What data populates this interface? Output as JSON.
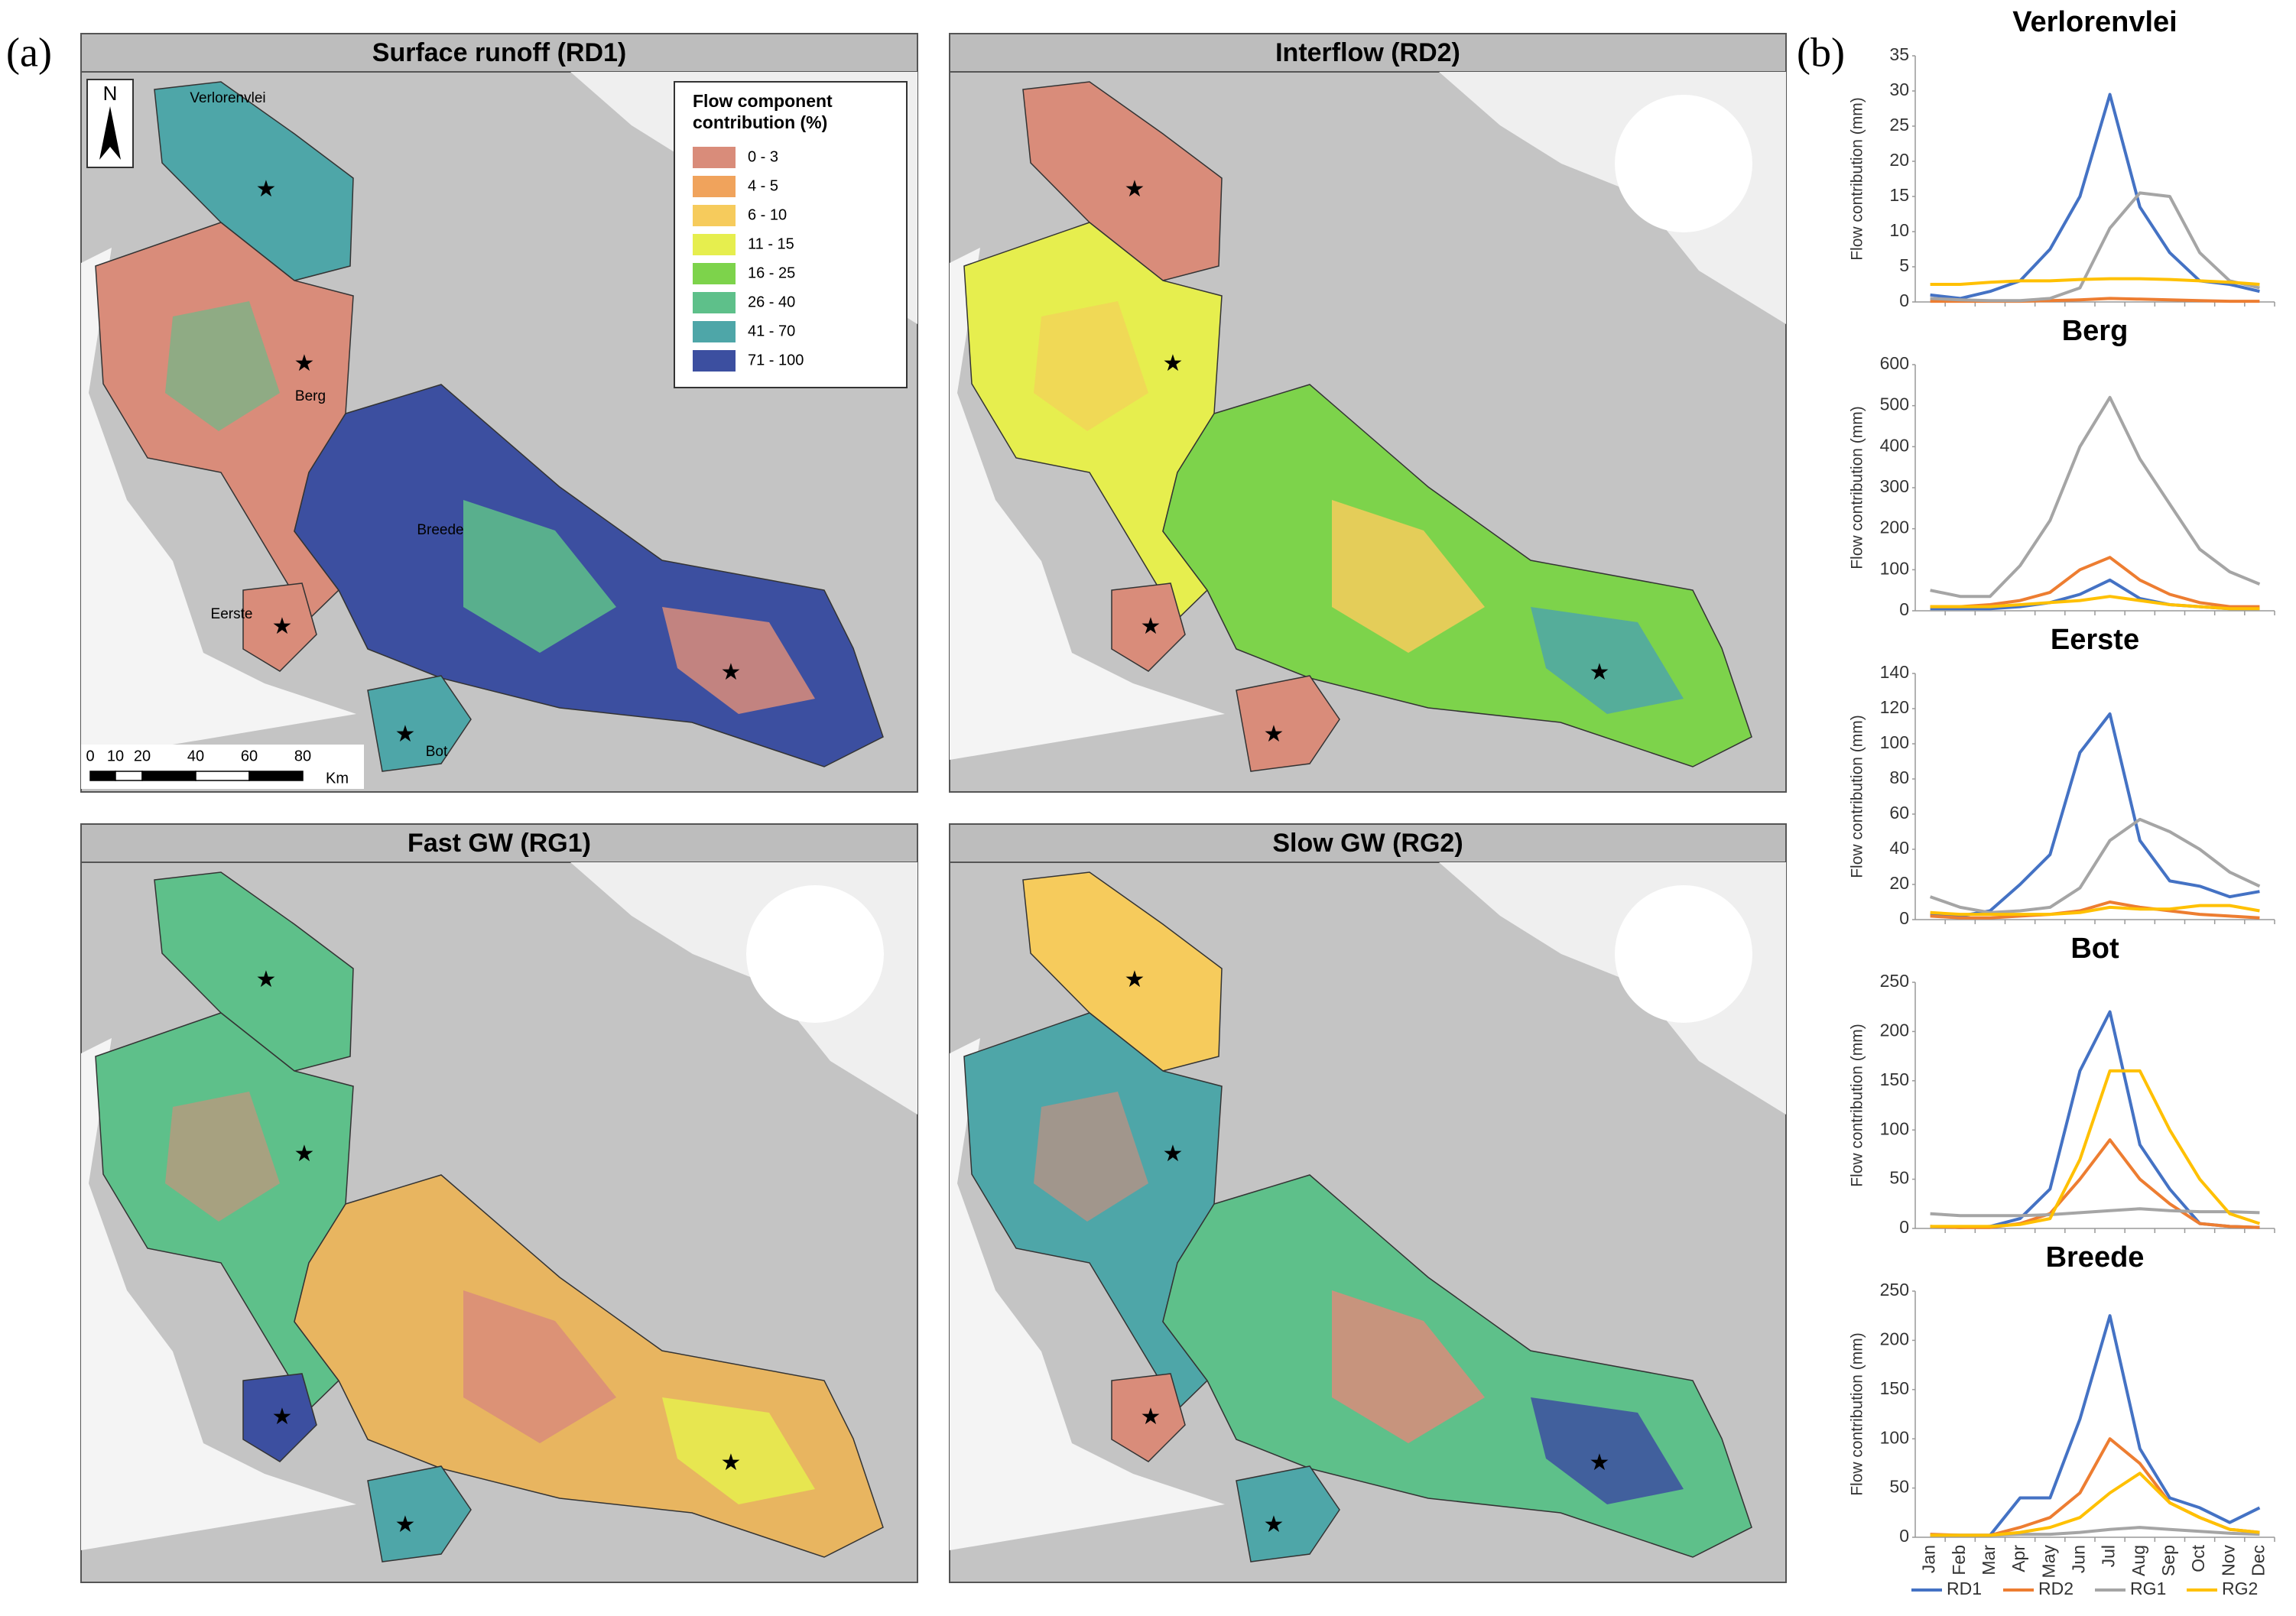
{
  "panel_labels": [
    "(a)",
    "(b)"
  ],
  "maps": [
    {
      "title": "Surface runoff (RD1)"
    },
    {
      "title": "Interflow (RD2)"
    },
    {
      "title": "Fast GW (RG1)"
    },
    {
      "title": "Slow GW (RG2)"
    }
  ],
  "north": "N",
  "places": [
    "Verlorenvlei",
    "Berg",
    "Breede",
    "Eerste",
    "Bot"
  ],
  "scale_bar": [
    "0",
    "10",
    "20",
    "40",
    "60",
    "80",
    "Km"
  ],
  "map_legend": {
    "title": [
      "Flow component",
      "contribution (%)"
    ],
    "items": [
      {
        "label": "0 - 3",
        "color": "#d98c7a"
      },
      {
        "label": "4 - 5",
        "color": "#f0a35c"
      },
      {
        "label": "6 - 10",
        "color": "#f6cb5c"
      },
      {
        "label": "11 - 15",
        "color": "#e6ee4e"
      },
      {
        "label": "16 - 25",
        "color": "#7dd34b"
      },
      {
        "label": "26 - 40",
        "color": "#5ec08a"
      },
      {
        "label": "41 - 70",
        "color": "#4ea6a8"
      },
      {
        "label": "71 - 100",
        "color": "#3c4fa0"
      }
    ]
  },
  "chart_data": [
    {
      "type": "line",
      "title": "Verlorenvlei",
      "y_label": "Flow contribution (mm)",
      "ylim": [
        0,
        35
      ],
      "yticks": [
        0,
        5,
        10,
        15,
        20,
        25,
        30,
        35
      ],
      "series": [
        {
          "values": [
            1,
            0.5,
            1.5,
            3,
            7.5,
            15,
            29.5,
            13.5,
            7,
            3,
            2.5,
            1.5
          ]
        },
        {
          "values": [
            0.1,
            0.1,
            0.1,
            0.1,
            0.2,
            0.3,
            0.5,
            0.4,
            0.3,
            0.2,
            0.1,
            0.1
          ]
        },
        {
          "values": [
            0.5,
            0.3,
            0.2,
            0.2,
            0.5,
            2,
            10.5,
            15.5,
            15,
            7,
            3,
            2
          ]
        },
        {
          "values": [
            2.5,
            2.5,
            2.8,
            3,
            3,
            3.2,
            3.3,
            3.3,
            3.2,
            3,
            2.8,
            2.5
          ]
        }
      ]
    },
    {
      "type": "line",
      "title": "Berg",
      "y_label": "Flow contribution (mm)",
      "ylim": [
        0,
        600
      ],
      "yticks": [
        0,
        100,
        200,
        300,
        400,
        500,
        600
      ],
      "series": [
        {
          "values": [
            5,
            5,
            5,
            10,
            20,
            40,
            75,
            30,
            15,
            10,
            5,
            5
          ]
        },
        {
          "values": [
            10,
            10,
            15,
            25,
            45,
            100,
            130,
            75,
            40,
            20,
            10,
            10
          ]
        },
        {
          "values": [
            50,
            35,
            35,
            110,
            220,
            400,
            520,
            370,
            260,
            150,
            95,
            65
          ]
        },
        {
          "values": [
            10,
            10,
            10,
            15,
            20,
            25,
            35,
            25,
            15,
            10,
            5,
            5
          ]
        }
      ]
    },
    {
      "type": "line",
      "title": "Eerste",
      "y_label": "Flow contribution (mm)",
      "ylim": [
        0,
        140
      ],
      "yticks": [
        0,
        20,
        40,
        60,
        80,
        100,
        120,
        140
      ],
      "series": [
        {
          "values": [
            3,
            2,
            5,
            20,
            37,
            95,
            117,
            45,
            22,
            19,
            13,
            16
          ]
        },
        {
          "values": [
            2,
            1,
            1,
            2,
            3,
            5,
            10,
            7,
            5,
            3,
            2,
            1
          ]
        },
        {
          "values": [
            13,
            7,
            4,
            5,
            7,
            18,
            45,
            57,
            50,
            40,
            27,
            19
          ]
        },
        {
          "values": [
            4,
            3,
            3,
            3,
            3,
            4,
            7,
            6,
            6,
            8,
            8,
            5
          ]
        }
      ]
    },
    {
      "type": "line",
      "title": "Bot",
      "y_label": "Flow contribution (mm)",
      "ylim": [
        0,
        250
      ],
      "yticks": [
        0,
        50,
        100,
        150,
        200,
        250
      ],
      "series": [
        {
          "values": [
            2,
            1,
            2,
            10,
            40,
            160,
            220,
            85,
            40,
            5,
            2,
            1
          ]
        },
        {
          "values": [
            2,
            1,
            1,
            5,
            15,
            50,
            90,
            50,
            25,
            5,
            2,
            1
          ]
        },
        {
          "values": [
            15,
            13,
            13,
            13,
            14,
            16,
            18,
            20,
            18,
            17,
            17,
            16
          ]
        },
        {
          "values": [
            2,
            2,
            2,
            4,
            10,
            70,
            160,
            160,
            100,
            50,
            15,
            5
          ]
        }
      ]
    },
    {
      "type": "line",
      "title": "Breede",
      "y_label": "Flow contribution (mm)",
      "ylim": [
        0,
        250
      ],
      "yticks": [
        0,
        50,
        100,
        150,
        200,
        250
      ],
      "categories": [
        "Jan",
        "Feb",
        "Mar",
        "Apr",
        "May",
        "Jun",
        "Jul",
        "Aug",
        "Sep",
        "Oct",
        "Nov",
        "Dec"
      ],
      "series": [
        {
          "name": "RD1",
          "color": "#4472c4",
          "values": [
            2,
            2,
            2,
            40,
            40,
            120,
            225,
            90,
            40,
            30,
            15,
            30
          ]
        },
        {
          "name": "RD2",
          "color": "#ed7d31",
          "values": [
            3,
            2,
            2,
            10,
            20,
            45,
            100,
            75,
            35,
            20,
            8,
            5
          ]
        },
        {
          "name": "RG1",
          "color": "#a5a5a5",
          "values": [
            2,
            2,
            2,
            3,
            3,
            5,
            8,
            10,
            8,
            6,
            4,
            3
          ]
        },
        {
          "name": "RG2",
          "color": "#ffc000",
          "values": [
            2,
            2,
            2,
            5,
            10,
            20,
            45,
            65,
            35,
            20,
            8,
            5
          ]
        }
      ]
    }
  ]
}
